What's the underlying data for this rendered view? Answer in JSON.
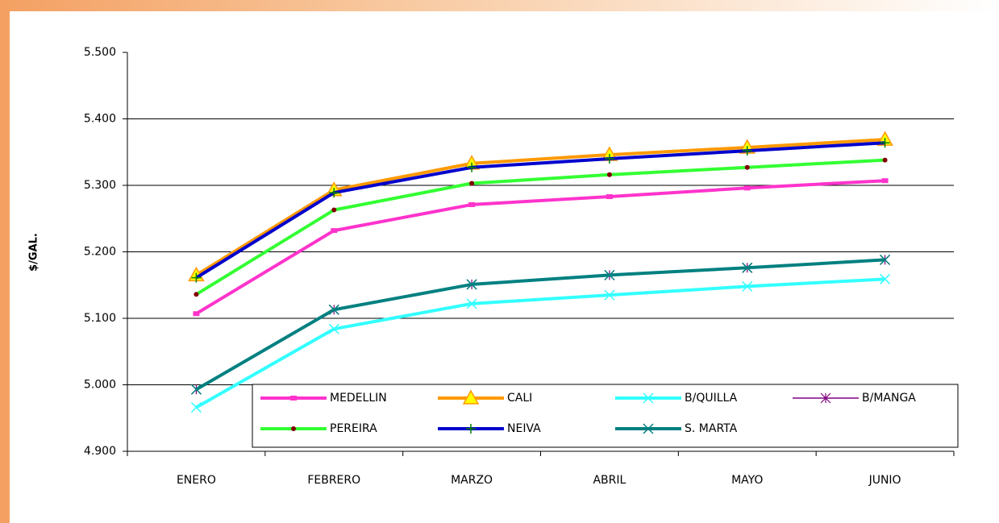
{
  "chart_data": {
    "type": "line",
    "y_label": "$/GAL.",
    "categories": [
      "ENERO",
      "FEBRERO",
      "MARZO",
      "ABRIL",
      "MAYO",
      "JUNIO"
    ],
    "ylim": [
      4900,
      5500
    ],
    "yticks": [
      {
        "value": 4900,
        "label": "4.900"
      },
      {
        "value": 5000,
        "label": "5.000"
      },
      {
        "value": 5100,
        "label": "5.100"
      },
      {
        "value": 5200,
        "label": "5.200"
      },
      {
        "value": 5300,
        "label": "5.300"
      },
      {
        "value": 5400,
        "label": "5.400"
      },
      {
        "value": 5500,
        "label": "5.500"
      }
    ],
    "grid": true,
    "legend": "bottom",
    "series": [
      {
        "name": "MEDELLIN",
        "color": "#ff33cc",
        "marker": "square",
        "values": [
          5107,
          5232,
          5271,
          5283,
          5296,
          5307
        ]
      },
      {
        "name": "CALI",
        "color": "#ff9900",
        "marker": "triangle",
        "values": [
          5165,
          5293,
          5333,
          5346,
          5357,
          5369
        ]
      },
      {
        "name": "B/QUILLA",
        "color": "#33ffff",
        "marker": "x",
        "values": [
          4966,
          5084,
          5122,
          5135,
          5148,
          5159
        ]
      },
      {
        "name": "B/MANGA",
        "color": "#800080",
        "marker": "star",
        "values": [
          4993,
          5113,
          5151,
          5165,
          5176,
          5188
        ]
      },
      {
        "name": "PEREIRA",
        "color": "#33ff33",
        "marker": "circle",
        "values": [
          5136,
          5263,
          5303,
          5316,
          5327,
          5338
        ]
      },
      {
        "name": "NEIVA",
        "color": "#0000cc",
        "marker": "plus",
        "values": [
          5161,
          5289,
          5327,
          5340,
          5352,
          5364
        ]
      },
      {
        "name": "S. MARTA",
        "color": "#008080",
        "marker": "x",
        "values": [
          4993,
          5113,
          5151,
          5165,
          5176,
          5188
        ]
      }
    ]
  }
}
